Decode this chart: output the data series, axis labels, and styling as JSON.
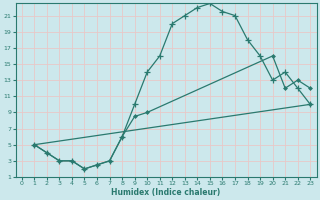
{
  "xlabel": "Humidex (Indice chaleur)",
  "xlim": [
    -0.5,
    23.5
  ],
  "ylim": [
    1,
    22.5
  ],
  "xticks": [
    0,
    1,
    2,
    3,
    4,
    5,
    6,
    7,
    8,
    9,
    10,
    11,
    12,
    13,
    14,
    15,
    16,
    17,
    18,
    19,
    20,
    21,
    22,
    23
  ],
  "yticks": [
    1,
    3,
    5,
    7,
    9,
    11,
    13,
    15,
    17,
    19,
    21
  ],
  "bg_color": "#cce8ec",
  "grid_color": "#b0d4d8",
  "line_color": "#2a7a6f",
  "line1_x": [
    1,
    2,
    3,
    4,
    5,
    6,
    7,
    8,
    9,
    10,
    11,
    12,
    13,
    14,
    15,
    16,
    17,
    18,
    19,
    20,
    21,
    22,
    23
  ],
  "line1_y": [
    5,
    4,
    3,
    3,
    2,
    2.5,
    3,
    6,
    10,
    14,
    16,
    20,
    21,
    22,
    22.5,
    21.5,
    21,
    18,
    16,
    13,
    14,
    12,
    10
  ],
  "line2_x": [
    1,
    2,
    3,
    4,
    5,
    6,
    7,
    8,
    9,
    10,
    20,
    21,
    22,
    23
  ],
  "line2_y": [
    5,
    4,
    3,
    3,
    2,
    2.5,
    3,
    6,
    8.5,
    9,
    16,
    12,
    13,
    12
  ],
  "line3_x": [
    1,
    23
  ],
  "line3_y": [
    5,
    10
  ]
}
